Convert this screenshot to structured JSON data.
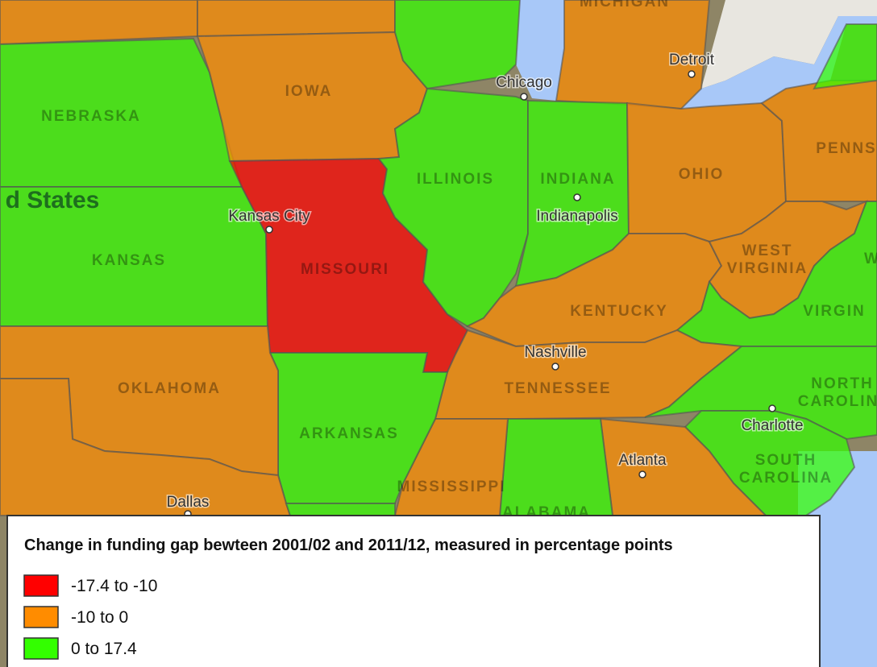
{
  "map": {
    "state_labels": [
      "MICHIGAN",
      "IOWA",
      "NEBRASKA",
      "KANSAS",
      "MISSOURI",
      "ILLINOIS",
      "INDIANA",
      "OHIO",
      "PENNS",
      "WEST",
      "VIRGINIA",
      "KENTUCKY",
      "W",
      "VIRGIN",
      "TENNESSEE",
      "NORTH",
      "CAROLIN",
      "OKLAHOMA",
      "ARKANSAS",
      "MISSISSIPPI",
      "ALABAMA",
      "SOUTH",
      "CAROLINA"
    ],
    "country_label": "d States",
    "city_labels": [
      "Chicago",
      "Detroit",
      "Kansas City",
      "Indianapolis",
      "Nashville",
      "Atlanta",
      "Charlotte",
      "Dallas"
    ]
  },
  "legend": {
    "title": "Change in funding gap bewteen 2001/02 and 2011/12, measured in percentage points",
    "items": [
      {
        "label": "-17.4 to -10",
        "color": "#ff0000"
      },
      {
        "label": "-10 to 0",
        "color": "#ff8c00"
      },
      {
        "label": "0 to 17.4",
        "color": "#33ff00"
      }
    ]
  }
}
